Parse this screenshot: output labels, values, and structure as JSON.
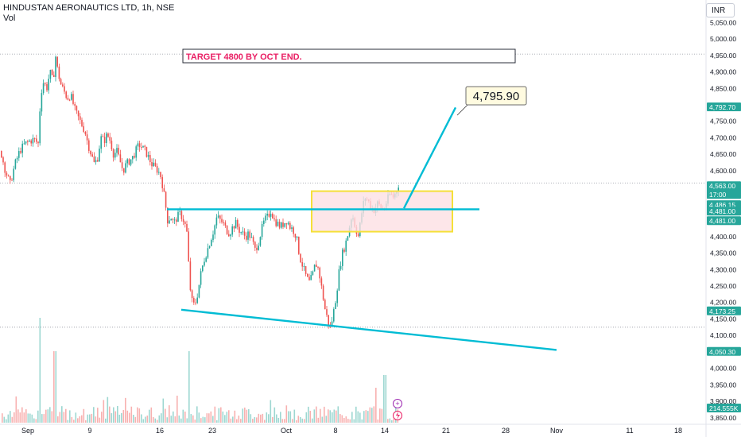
{
  "header": {
    "symbol_line": "HINDUSTAN AERONAUTICS LTD, 1h, NSE",
    "volume_label": "Vol",
    "currency": "INR"
  },
  "annotations": {
    "target_text": "TARGET 4800 BY OCT END.",
    "target_price_label": "4,795.90"
  },
  "colors": {
    "up": "#26a69a",
    "down": "#ef5350",
    "line": "#00bcd4",
    "zone_fill": "#fde0e3",
    "zone_border": "#f5e038",
    "target_text": "#e91e63",
    "badge": "#26a69a"
  },
  "chart_data": {
    "type": "candlestick",
    "y_axis_ticks": [
      "5,050.00",
      "5,000.00",
      "4,950.00",
      "4,900.00",
      "4,850.00",
      "4,800.00",
      "4,750.00",
      "4,700.00",
      "4,650.00",
      "4,600.00",
      "4,550.00",
      "4,500.00",
      "4,450.00",
      "4,400.00",
      "4,350.00",
      "4,300.00",
      "4,250.00",
      "4,200.00",
      "4,150.00",
      "4,100.00",
      "4,050.00",
      "4,000.00",
      "3,950.00",
      "3,900.00",
      "3,850.00"
    ],
    "ylim": [
      3835,
      5075
    ],
    "x_axis_ticks": [
      "Sep",
      "9",
      "16",
      "23",
      "Oct",
      "8",
      "14",
      "21",
      "28",
      "Nov",
      "11",
      "18"
    ],
    "price_badges": [
      {
        "label": "4,792.70",
        "value": 4792.7
      },
      {
        "label": "4,563.00",
        "sub": "17:00",
        "value": 4563
      },
      {
        "label": "4,486.15",
        "value": 4486.15
      },
      {
        "label": "4,481.00",
        "value": 4481
      },
      {
        "label": "4,481.00",
        "value": 4481
      },
      {
        "label": "4,173.25",
        "value": 4173.25
      },
      {
        "label": "4,050.30",
        "value": 4050.3
      },
      {
        "label": "214.555K",
        "value": 214.555
      }
    ],
    "horizontal_dotted_levels": [
      4954,
      4563,
      4125
    ],
    "price_path_close": [
      [
        0,
        4660
      ],
      [
        6,
        4600
      ],
      [
        12,
        4560
      ],
      [
        18,
        4620
      ],
      [
        24,
        4660
      ],
      [
        30,
        4680
      ],
      [
        36,
        4690
      ],
      [
        42,
        4695
      ],
      [
        48,
        4680
      ],
      [
        50,
        4830
      ],
      [
        54,
        4870
      ],
      [
        58,
        4850
      ],
      [
        62,
        4900
      ],
      [
        66,
        4870
      ],
      [
        69,
        4950
      ],
      [
        72,
        4900
      ],
      [
        76,
        4860
      ],
      [
        80,
        4840
      ],
      [
        84,
        4820
      ],
      [
        88,
        4830
      ],
      [
        94,
        4780
      ],
      [
        98,
        4760
      ],
      [
        102,
        4740
      ],
      [
        106,
        4720
      ],
      [
        110,
        4680
      ],
      [
        114,
        4650
      ],
      [
        118,
        4620
      ],
      [
        122,
        4640
      ],
      [
        126,
        4700
      ],
      [
        130,
        4690
      ],
      [
        134,
        4710
      ],
      [
        138,
        4690
      ],
      [
        142,
        4650
      ],
      [
        146,
        4660
      ],
      [
        150,
        4630
      ],
      [
        154,
        4600
      ],
      [
        158,
        4620
      ],
      [
        162,
        4630
      ],
      [
        166,
        4640
      ],
      [
        170,
        4660
      ],
      [
        174,
        4680
      ],
      [
        178,
        4670
      ],
      [
        182,
        4660
      ],
      [
        186,
        4640
      ],
      [
        190,
        4620
      ],
      [
        194,
        4610
      ],
      [
        198,
        4600
      ],
      [
        202,
        4580
      ],
      [
        206,
        4520
      ],
      [
        210,
        4450
      ],
      [
        214,
        4460
      ],
      [
        218,
        4440
      ],
      [
        222,
        4460
      ],
      [
        226,
        4470
      ],
      [
        230,
        4450
      ],
      [
        234,
        4420
      ],
      [
        238,
        4250
      ],
      [
        241,
        4200
      ],
      [
        244,
        4190
      ],
      [
        248,
        4230
      ],
      [
        252,
        4290
      ],
      [
        256,
        4330
      ],
      [
        260,
        4360
      ],
      [
        264,
        4390
      ],
      [
        268,
        4420
      ],
      [
        272,
        4460
      ],
      [
        276,
        4450
      ],
      [
        280,
        4440
      ],
      [
        284,
        4420
      ],
      [
        288,
        4410
      ],
      [
        292,
        4430
      ],
      [
        296,
        4440
      ],
      [
        300,
        4420
      ],
      [
        304,
        4410
      ],
      [
        308,
        4400
      ],
      [
        312,
        4410
      ],
      [
        316,
        4390
      ],
      [
        320,
        4360
      ],
      [
        324,
        4380
      ],
      [
        328,
        4420
      ],
      [
        332,
        4450
      ],
      [
        336,
        4460
      ],
      [
        340,
        4480
      ],
      [
        344,
        4450
      ],
      [
        348,
        4440
      ],
      [
        352,
        4430
      ],
      [
        356,
        4440
      ],
      [
        360,
        4450
      ],
      [
        364,
        4430
      ],
      [
        368,
        4420
      ],
      [
        372,
        4400
      ],
      [
        376,
        4340
      ],
      [
        380,
        4310
      ],
      [
        384,
        4280
      ],
      [
        388,
        4260
      ],
      [
        392,
        4280
      ],
      [
        396,
        4320
      ],
      [
        400,
        4300
      ],
      [
        404,
        4240
      ],
      [
        408,
        4180
      ],
      [
        412,
        4140
      ],
      [
        415,
        4125
      ],
      [
        418,
        4160
      ],
      [
        422,
        4220
      ],
      [
        426,
        4300
      ],
      [
        430,
        4350
      ],
      [
        434,
        4380
      ],
      [
        438,
        4420
      ],
      [
        442,
        4470
      ],
      [
        446,
        4430
      ],
      [
        450,
        4400
      ],
      [
        454,
        4470
      ],
      [
        458,
        4520
      ],
      [
        462,
        4510
      ],
      [
        466,
        4490
      ],
      [
        470,
        4480
      ],
      [
        474,
        4500
      ],
      [
        478,
        4490
      ],
      [
        482,
        4481
      ],
      [
        486,
        4510
      ],
      [
        490,
        4530
      ],
      [
        494,
        4520
      ],
      [
        498,
        4540
      ],
      [
        501,
        4563
      ]
    ],
    "volume_spikes": [
      [
        50,
        3
      ]
    ],
    "trend_lines": [
      {
        "name": "neckline",
        "points": [
          [
            210,
            4483
          ],
          [
            603,
            4483
          ]
        ]
      },
      {
        "name": "support",
        "points": [
          [
            228,
            4178
          ],
          [
            700,
            4056
          ]
        ]
      },
      {
        "name": "projection",
        "points": [
          [
            508,
            4486
          ],
          [
            573,
            4792
          ]
        ]
      }
    ],
    "zone": {
      "x0": 392,
      "x1": 569,
      "y_top": 4538,
      "y_bottom": 4415
    },
    "target_label_anchor": {
      "x": 578,
      "y": 4792.7
    }
  }
}
